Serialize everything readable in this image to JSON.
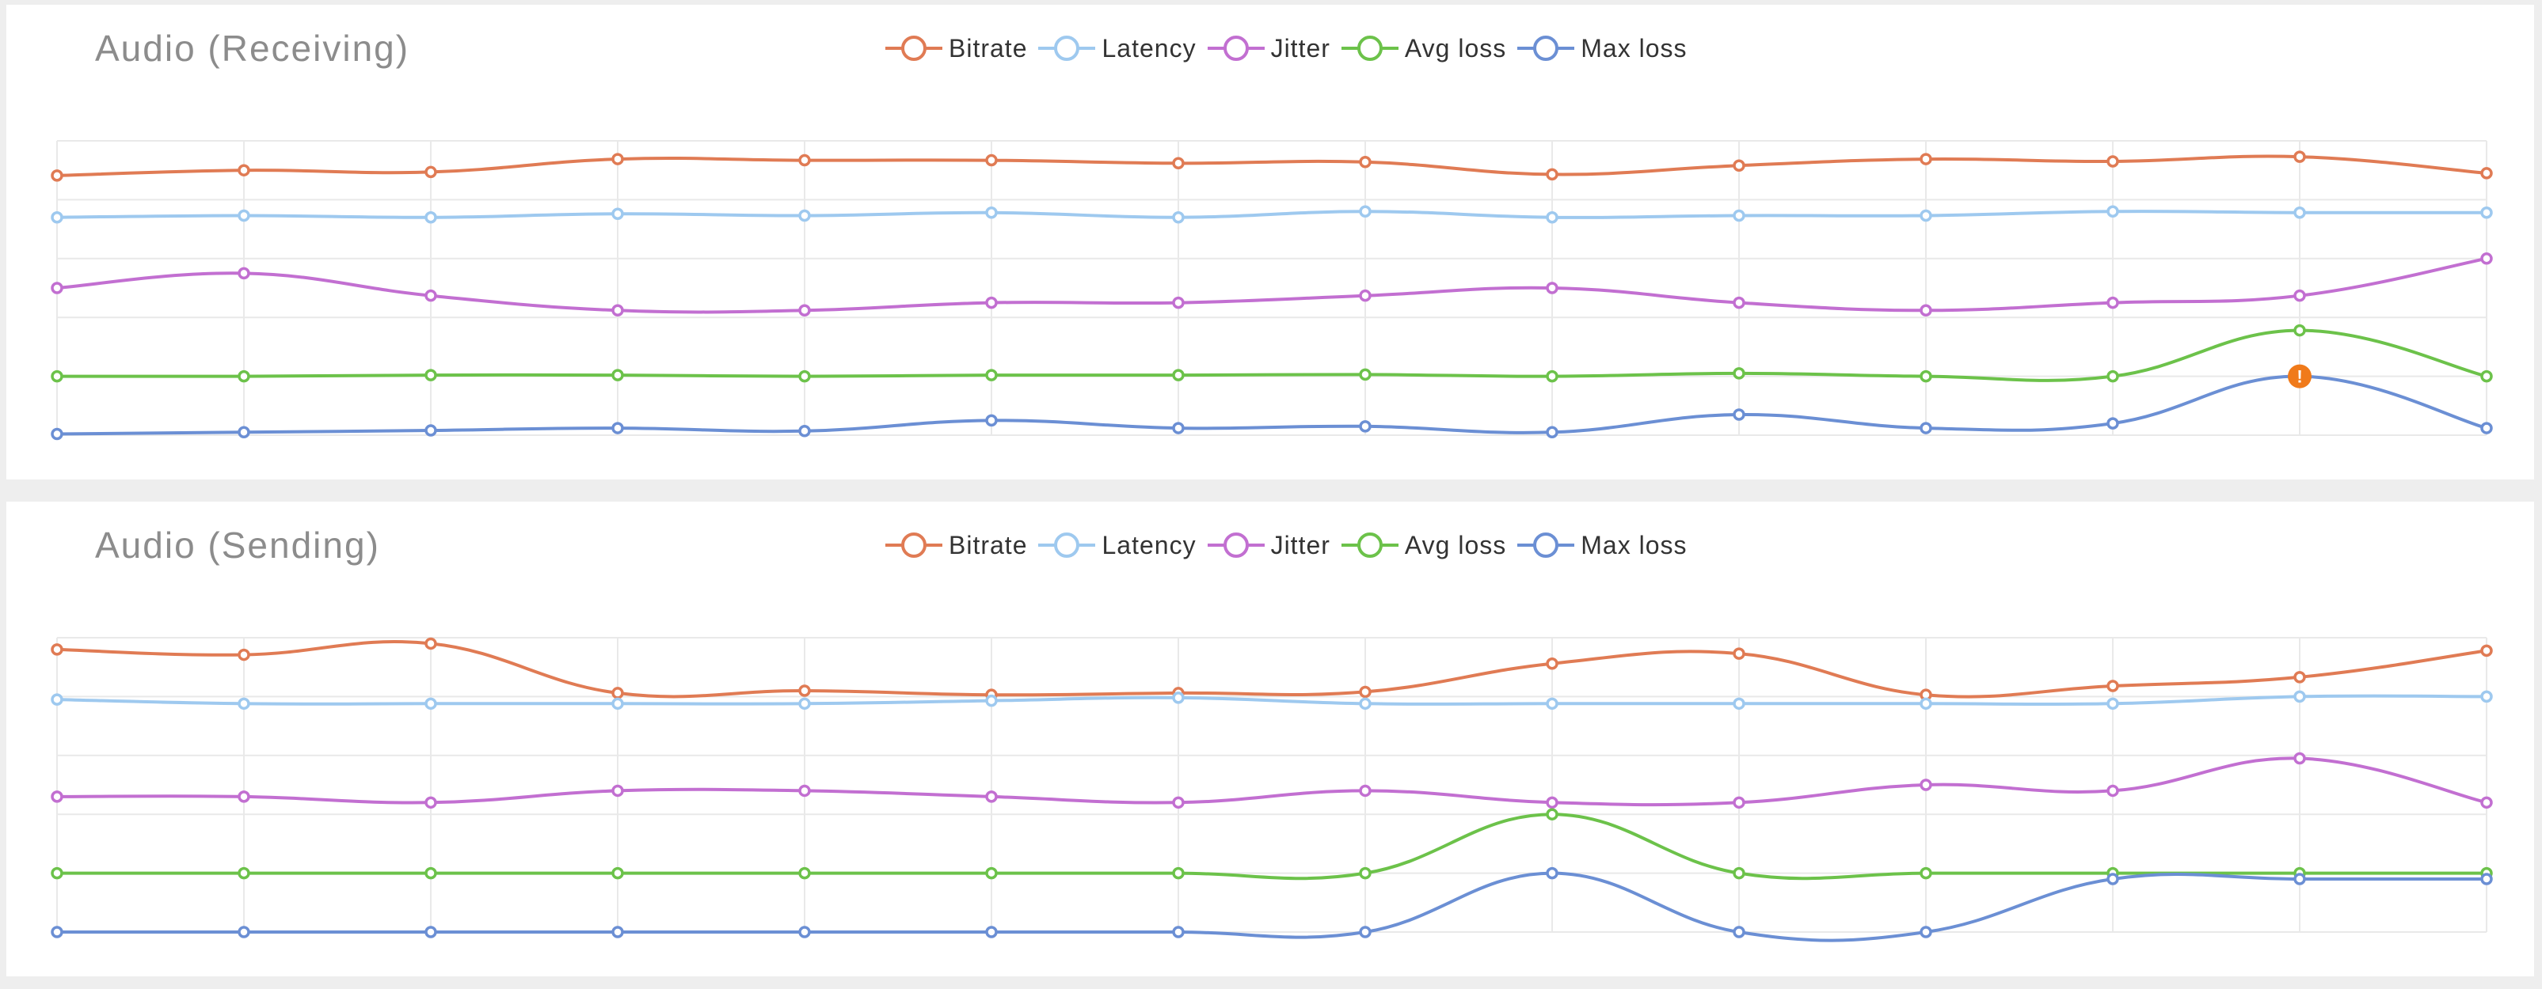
{
  "chart_data": [
    {
      "type": "line",
      "title": "Audio (Receiving)",
      "legend_position": "top-center",
      "grid": true,
      "x": [
        1,
        2,
        3,
        4,
        5,
        6,
        7,
        8,
        9,
        10,
        11,
        12,
        13,
        14
      ],
      "ylim": [
        0,
        5
      ],
      "series": [
        {
          "name": "Bitrate",
          "color": "#e07b54",
          "values": [
            4.41,
            4.5,
            4.47,
            4.69,
            4.67,
            4.67,
            4.62,
            4.64,
            4.43,
            4.58,
            4.69,
            4.65,
            4.73,
            4.45
          ]
        },
        {
          "name": "Latency",
          "color": "#9ec9ef",
          "values": [
            3.7,
            3.73,
            3.7,
            3.76,
            3.73,
            3.78,
            3.7,
            3.8,
            3.7,
            3.73,
            3.73,
            3.8,
            3.78,
            3.78
          ]
        },
        {
          "name": "Jitter",
          "color": "#c26fd1",
          "values": [
            2.5,
            2.75,
            2.37,
            2.12,
            2.12,
            2.25,
            2.25,
            2.37,
            2.5,
            2.25,
            2.12,
            2.25,
            2.37,
            3.0
          ]
        },
        {
          "name": "Avg loss",
          "color": "#6cc24a",
          "values": [
            1.0,
            1.0,
            1.02,
            1.02,
            1.0,
            1.02,
            1.02,
            1.03,
            1.0,
            1.05,
            1.0,
            1.0,
            1.78,
            1.0
          ]
        },
        {
          "name": "Max loss",
          "color": "#6b8fd4",
          "values": [
            0.02,
            0.05,
            0.08,
            0.12,
            0.07,
            0.25,
            0.12,
            0.15,
            0.05,
            0.35,
            0.12,
            0.2,
            1.0,
            0.12
          ]
        }
      ],
      "annotations": [
        {
          "series": "Max loss",
          "index": 12,
          "marker": "!",
          "color": "#f07a1a"
        }
      ]
    },
    {
      "type": "line",
      "title": "Audio (Sending)",
      "legend_position": "top-center",
      "grid": true,
      "x": [
        1,
        2,
        3,
        4,
        5,
        6,
        7,
        8,
        9,
        10,
        11,
        12,
        13,
        14
      ],
      "ylim": [
        0,
        5
      ],
      "series": [
        {
          "name": "Bitrate",
          "color": "#e07b54",
          "values": [
            4.8,
            4.71,
            4.9,
            4.06,
            4.1,
            4.03,
            4.06,
            4.08,
            4.56,
            4.73,
            4.03,
            4.18,
            4.33,
            4.78
          ]
        },
        {
          "name": "Latency",
          "color": "#9ec9ef",
          "values": [
            3.95,
            3.88,
            3.88,
            3.88,
            3.88,
            3.93,
            3.98,
            3.88,
            3.88,
            3.88,
            3.88,
            3.88,
            4.0,
            4.0
          ]
        },
        {
          "name": "Jitter",
          "color": "#c26fd1",
          "values": [
            2.3,
            2.3,
            2.2,
            2.4,
            2.4,
            2.3,
            2.2,
            2.4,
            2.2,
            2.2,
            2.5,
            2.4,
            2.95,
            2.2
          ]
        },
        {
          "name": "Avg loss",
          "color": "#6cc24a",
          "values": [
            1.0,
            1.0,
            1.0,
            1.0,
            1.0,
            1.0,
            1.0,
            1.0,
            2.0,
            1.0,
            1.0,
            1.0,
            1.0,
            1.0
          ]
        },
        {
          "name": "Max loss",
          "color": "#6b8fd4",
          "values": [
            0.0,
            0.0,
            0.0,
            0.0,
            0.0,
            0.0,
            0.0,
            0.0,
            1.0,
            0.0,
            0.0,
            0.9,
            0.9,
            0.9
          ]
        }
      ],
      "annotations": []
    }
  ]
}
